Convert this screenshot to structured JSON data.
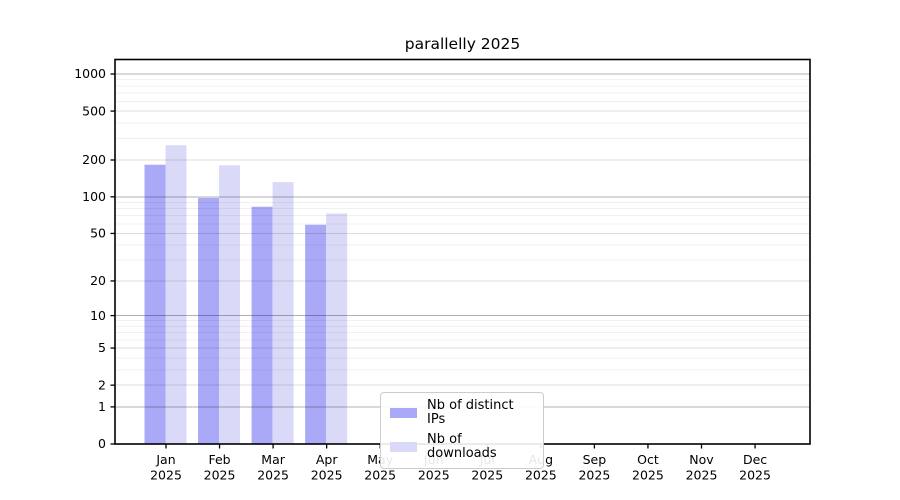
{
  "chart_data": {
    "type": "bar",
    "title": "parallelly 2025",
    "categories": [
      "Jan",
      "Feb",
      "Mar",
      "Apr",
      "May",
      "Jun",
      "Jul",
      "Aug",
      "Sep",
      "Oct",
      "Nov",
      "Dec"
    ],
    "x_year_label": "2025",
    "series": [
      {
        "name": "Nb of distinct IPs",
        "color": "#a9a9f8",
        "values": [
          183,
          98,
          83,
          59,
          null,
          null,
          null,
          null,
          null,
          null,
          null,
          null
        ]
      },
      {
        "name": "Nb of downloads",
        "color": "#dadaf8",
        "values": [
          264,
          181,
          132,
          73,
          null,
          null,
          null,
          null,
          null,
          null,
          null,
          null
        ]
      }
    ],
    "yscale": "log1p",
    "ylim": [
      0,
      1312
    ],
    "yticks": [
      0,
      1,
      2,
      5,
      10,
      20,
      50,
      100,
      200,
      500,
      1000
    ],
    "minor_yticks": [
      3,
      4,
      6,
      7,
      8,
      9,
      30,
      40,
      60,
      70,
      80,
      90,
      300,
      400,
      600,
      700,
      800,
      900
    ],
    "grid": true,
    "legend": {
      "position": "lower-center"
    },
    "colors": {
      "grid_major": "rgba(0,0,0,0.30)",
      "grid_mid": "rgba(0,0,0,0.13)",
      "grid_minor": "rgba(0,0,0,0.06)",
      "axis": "#000000",
      "text": "#000000",
      "background": "#ffffff"
    }
  }
}
